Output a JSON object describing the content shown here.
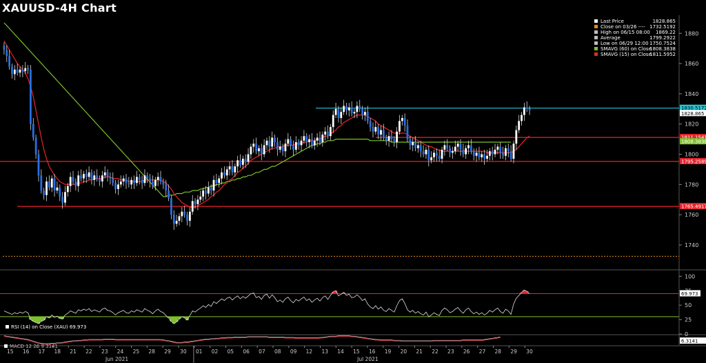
{
  "title": "XAUUSD-4H Chart",
  "legend": [
    {
      "label": "Last Price",
      "value": "1828.865",
      "color": "#ffffff"
    },
    {
      "label": "Close on 03/26 ----",
      "value": "1732.5192",
      "color": "#e88a1a"
    },
    {
      "label": "High on 06/15 08:00",
      "value": "1869.22",
      "color": "#bbbbbb"
    },
    {
      "label": "Average",
      "value": "1799.2922",
      "color": "#bbbbbb"
    },
    {
      "label": "Low on 06/29 12:00",
      "value": "1750.7524",
      "color": "#bbbbbb"
    },
    {
      "label": "SMAVG (60)  on Close",
      "value": "1808.3838",
      "color": "#7cc22a"
    },
    {
      "label": "SMAVG (15)  on Close",
      "value": "1811.5952",
      "color": "#e8242c"
    }
  ],
  "rsi_legend": "RSI (14)  on Close (XAU) 69.973",
  "macd_legend": "MACD 12 26 9 3141",
  "chart_data": {
    "type": "candlestick",
    "title": "XAUUSD-4H Chart",
    "price_axis": {
      "ylim": [
        1724,
        1892
      ],
      "ticks": [
        1740,
        1760,
        1780,
        1800,
        1820,
        1840,
        1860,
        1880
      ]
    },
    "x_day_labels": [
      "15",
      "16",
      "17",
      "18",
      "21",
      "22",
      "23",
      "24",
      "25",
      "28",
      "29",
      "30",
      "01",
      "02",
      "05",
      "06",
      "07",
      "08",
      "09",
      "12",
      "13",
      "14",
      "15",
      "16",
      "19",
      "20",
      "21",
      "22",
      "23",
      "26",
      "27",
      "28",
      "29",
      "30"
    ],
    "month_labels": [
      {
        "text": "Jun 2021",
        "after_day_index": 6
      },
      {
        "text": "Jul 2021",
        "after_day_index": 22
      }
    ],
    "horizontal_levels": [
      {
        "value": 1830.5172,
        "label": "1830.5172",
        "color": "#27c4d8"
      },
      {
        "value": 1811.1541,
        "label": "1811.1541",
        "color": "#e8242c"
      },
      {
        "value": 1795.2589,
        "label": "1795.2589",
        "color": "#e8242c"
      },
      {
        "value": 1765.4917,
        "label": "1765.4917",
        "color": "#e8242c"
      },
      {
        "value": 1732.5192,
        "label": "",
        "color": "#e88a1a"
      }
    ],
    "price_tags": [
      {
        "value": 1830.5172,
        "label": "1830.5172",
        "color": "#27c4d8"
      },
      {
        "value": 1828.865,
        "label": "1828.865",
        "color": "#ffffff"
      },
      {
        "value": 1811.1541,
        "label": "1811.1541",
        "color": "#e8242c"
      },
      {
        "value": 1808.3838,
        "label": "1808.3838",
        "color": "#7cc22a"
      },
      {
        "value": 1795.2589,
        "label": "1795.2589",
        "color": "#e8242c"
      },
      {
        "value": 1765.4917,
        "label": "1765.4917",
        "color": "#e8242c"
      }
    ],
    "candles_close": [
      1869,
      1865,
      1858,
      1853,
      1856,
      1854,
      1856,
      1855,
      1857,
      1856,
      1820,
      1811,
      1800,
      1786,
      1776,
      1773,
      1782,
      1778,
      1784,
      1776,
      1778,
      1772,
      1768,
      1775,
      1779,
      1785,
      1782,
      1779,
      1786,
      1784,
      1787,
      1785,
      1788,
      1783,
      1786,
      1784,
      1782,
      1786,
      1788,
      1785,
      1784,
      1781,
      1777,
      1780,
      1782,
      1784,
      1781,
      1780,
      1783,
      1781,
      1785,
      1783,
      1781,
      1786,
      1784,
      1782,
      1779,
      1783,
      1785,
      1782,
      1780,
      1776,
      1771,
      1760,
      1754,
      1756,
      1759,
      1762,
      1760,
      1756,
      1762,
      1769,
      1767,
      1770,
      1772,
      1776,
      1774,
      1778,
      1776,
      1783,
      1781,
      1784,
      1788,
      1786,
      1790,
      1792,
      1788,
      1792,
      1796,
      1793,
      1797,
      1795,
      1800,
      1805,
      1807,
      1802,
      1804,
      1800,
      1806,
      1809,
      1805,
      1811,
      1808,
      1803,
      1805,
      1802,
      1807,
      1810,
      1806,
      1803,
      1808,
      1806,
      1809,
      1812,
      1808,
      1810,
      1806,
      1809,
      1811,
      1808,
      1813,
      1815,
      1812,
      1818,
      1826,
      1830,
      1824,
      1828,
      1832,
      1829,
      1831,
      1827,
      1828,
      1832,
      1830,
      1826,
      1828,
      1822,
      1818,
      1815,
      1818,
      1813,
      1816,
      1811,
      1809,
      1812,
      1810,
      1808,
      1815,
      1822,
      1824,
      1819,
      1810,
      1806,
      1808,
      1804,
      1806,
      1802,
      1800,
      1803,
      1796,
      1798,
      1801,
      1799,
      1797,
      1803,
      1806,
      1804,
      1801,
      1802,
      1805,
      1807,
      1803,
      1800,
      1804,
      1806,
      1802,
      1799,
      1801,
      1798,
      1800,
      1797,
      1799,
      1802,
      1800,
      1803,
      1805,
      1801,
      1799,
      1804,
      1802,
      1797,
      1807,
      1816,
      1822,
      1826,
      1831,
      1830,
      1829
    ],
    "sma15": [
      1875,
      1872,
      1869,
      1866,
      1863,
      1860,
      1858,
      1856,
      1854,
      1850,
      1845,
      1838,
      1829,
      1820,
      1811,
      1803,
      1797,
      1792,
      1789,
      1786,
      1784,
      1782,
      1781,
      1780,
      1780,
      1780,
      1780,
      1780,
      1781,
      1781,
      1782,
      1782,
      1783,
      1783,
      1784,
      1784,
      1784,
      1784,
      1785,
      1785,
      1785,
      1784,
      1784,
      1784,
      1783,
      1783,
      1783,
      1782,
      1782,
      1782,
      1782,
      1782,
      1782,
      1783,
      1783,
      1783,
      1783,
      1783,
      1783,
      1783,
      1782,
      1781,
      1779,
      1777,
      1774,
      1772,
      1770,
      1768,
      1767,
      1766,
      1765,
      1765,
      1765,
      1766,
      1767,
      1768,
      1769,
      1770,
      1772,
      1773,
      1775,
      1776,
      1778,
      1780,
      1781,
      1783,
      1784,
      1786,
      1788,
      1789,
      1791,
      1792,
      1794,
      1796,
      1797,
      1798,
      1799,
      1800,
      1801,
      1802,
      1803,
      1804,
      1804,
      1805,
      1805,
      1805,
      1806,
      1806,
      1806,
      1806,
      1807,
      1807,
      1807,
      1808,
      1808,
      1809,
      1809,
      1809,
      1810,
      1810,
      1811,
      1812,
      1812,
      1813,
      1815,
      1816,
      1818,
      1819,
      1821,
      1822,
      1823,
      1824,
      1825,
      1826,
      1826,
      1826,
      1826,
      1825,
      1824,
      1823,
      1822,
      1820,
      1819,
      1818,
      1817,
      1816,
      1815,
      1814,
      1814,
      1814,
      1814,
      1814,
      1813,
      1812,
      1811,
      1810,
      1809,
      1808,
      1807,
      1806,
      1805,
      1805,
      1804,
      1803,
      1803,
      1802,
      1802,
      1802,
      1802,
      1802,
      1802,
      1802,
      1802,
      1802,
      1802,
      1802,
      1802,
      1802,
      1802,
      1802,
      1802,
      1802,
      1801,
      1801,
      1801,
      1801,
      1801,
      1801,
      1801,
      1801,
      1801,
      1801,
      1802,
      1803,
      1805,
      1807,
      1809,
      1811,
      1812
    ],
    "sma60_start_index": 60,
    "sma60": [
      1772,
      1772,
      1773,
      1773,
      1773,
      1774,
      1774,
      1774,
      1775,
      1775,
      1775,
      1776,
      1776,
      1776,
      1777,
      1777,
      1778,
      1778,
      1779,
      1779,
      1780,
      1780,
      1781,
      1781,
      1782,
      1782,
      1783,
      1783,
      1784,
      1784,
      1785,
      1785,
      1786,
      1786,
      1787,
      1788,
      1788,
      1789,
      1790,
      1790,
      1791,
      1792,
      1792,
      1793,
      1794,
      1795,
      1796,
      1797,
      1798,
      1799,
      1800,
      1801,
      1802,
      1803,
      1804,
      1805,
      1806,
      1806,
      1807,
      1807,
      1808,
      1808,
      1809,
      1809,
      1809,
      1810,
      1810,
      1810,
      1810,
      1810,
      1810,
      1810,
      1810,
      1810,
      1810,
      1810,
      1810,
      1810,
      1809,
      1809,
      1809,
      1809,
      1809,
      1809,
      1809,
      1809,
      1808,
      1808,
      1808,
      1808,
      1808,
      1808,
      1808,
      1808,
      1808,
      1808,
      1808,
      1808,
      1808,
      1808,
      1808,
      1808,
      1808,
      1808,
      1808,
      1808,
      1808,
      1808,
      1808,
      1808,
      1808,
      1808,
      1808,
      1808,
      1808,
      1808,
      1808,
      1808,
      1808,
      1808,
      1808,
      1808,
      1808,
      1808,
      1808,
      1808,
      1808,
      1808,
      1808,
      1808,
      1808,
      1808
    ],
    "rsi": {
      "ylim": [
        0,
        110
      ],
      "ticks": [
        0,
        25,
        50,
        75,
        100
      ],
      "levels": [
        {
          "value": 70,
          "color": "#e8242c"
        },
        {
          "value": 30,
          "color": "#7cc22a"
        }
      ],
      "last_value": 69.973,
      "last_label": "69.973",
      "values": [
        40,
        38,
        36,
        34,
        37,
        35,
        38,
        36,
        39,
        37,
        25,
        22,
        20,
        18,
        22,
        24,
        30,
        28,
        33,
        29,
        31,
        27,
        26,
        33,
        36,
        40,
        38,
        36,
        42,
        40,
        43,
        41,
        44,
        39,
        42,
        40,
        38,
        43,
        45,
        41,
        40,
        37,
        33,
        37,
        39,
        41,
        37,
        36,
        40,
        38,
        42,
        40,
        38,
        44,
        41,
        39,
        35,
        40,
        43,
        39,
        37,
        32,
        28,
        22,
        18,
        21,
        26,
        30,
        28,
        24,
        32,
        40,
        38,
        42,
        45,
        49,
        46,
        51,
        48,
        56,
        53,
        57,
        61,
        58,
        62,
        64,
        59,
        63,
        66,
        61,
        65,
        62,
        66,
        70,
        71,
        63,
        65,
        60,
        67,
        69,
        62,
        68,
        63,
        56,
        59,
        55,
        61,
        64,
        58,
        54,
        60,
        57,
        61,
        64,
        58,
        61,
        55,
        59,
        62,
        57,
        63,
        66,
        60,
        67,
        73,
        75,
        66,
        69,
        72,
        67,
        69,
        63,
        64,
        68,
        64,
        58,
        61,
        52,
        47,
        44,
        49,
        43,
        47,
        41,
        39,
        44,
        41,
        38,
        49,
        58,
        61,
        53,
        42,
        38,
        41,
        36,
        39,
        35,
        33,
        38,
        30,
        33,
        37,
        34,
        32,
        41,
        45,
        42,
        37,
        39,
        43,
        46,
        40,
        36,
        42,
        45,
        39,
        35,
        38,
        34,
        37,
        33,
        36,
        41,
        38,
        42,
        45,
        39,
        36,
        43,
        40,
        34,
        52,
        62,
        67,
        72,
        76,
        74,
        70
      ]
    },
    "macd": {
      "last_label": "6.3141",
      "values": [
        9,
        8,
        7,
        6,
        5,
        4,
        3,
        2,
        1,
        0,
        -2,
        -4,
        -6,
        -8,
        -9,
        -10,
        -10,
        -10,
        -9,
        -9,
        -8,
        -8,
        -7,
        -6,
        -5,
        -4,
        -3,
        -3,
        -2,
        -2,
        -1,
        -1,
        0,
        0,
        0,
        0,
        0,
        0,
        1,
        1,
        1,
        1,
        0,
        0,
        0,
        0,
        0,
        0,
        0,
        0,
        0,
        0,
        0,
        0,
        0,
        0,
        0,
        0,
        0,
        0,
        -1,
        -2,
        -3,
        -4,
        -6,
        -7,
        -7,
        -7,
        -6,
        -6,
        -5,
        -4,
        -3,
        -2,
        -1,
        0,
        1,
        1,
        2,
        2,
        3,
        3,
        4,
        4,
        5,
        5,
        5,
        6,
        6,
        6,
        6,
        6,
        7,
        7,
        7,
        7,
        7,
        7,
        7,
        7,
        6,
        6,
        6,
        6,
        6,
        6,
        5,
        5,
        5,
        5,
        4,
        4,
        4,
        4,
        4,
        4,
        4,
        4,
        4,
        5,
        5,
        6,
        7,
        8,
        8,
        8,
        9,
        9,
        9,
        9,
        9,
        8,
        8,
        7,
        6,
        5,
        4,
        3,
        2,
        1,
        0,
        0,
        -1,
        -1,
        -1,
        -1,
        -1,
        -2,
        -2,
        -2,
        -3,
        -3,
        -3,
        -3,
        -3,
        -3,
        -3,
        -3,
        -3,
        -3,
        -3,
        -3,
        -2,
        -2,
        -2,
        -2,
        -2,
        -2,
        -2,
        -2,
        -2,
        -2,
        -2,
        -1,
        -1,
        -1,
        -1,
        -1,
        -1,
        -1,
        -1,
        0,
        1,
        2,
        3,
        4,
        5,
        6
      ]
    }
  }
}
